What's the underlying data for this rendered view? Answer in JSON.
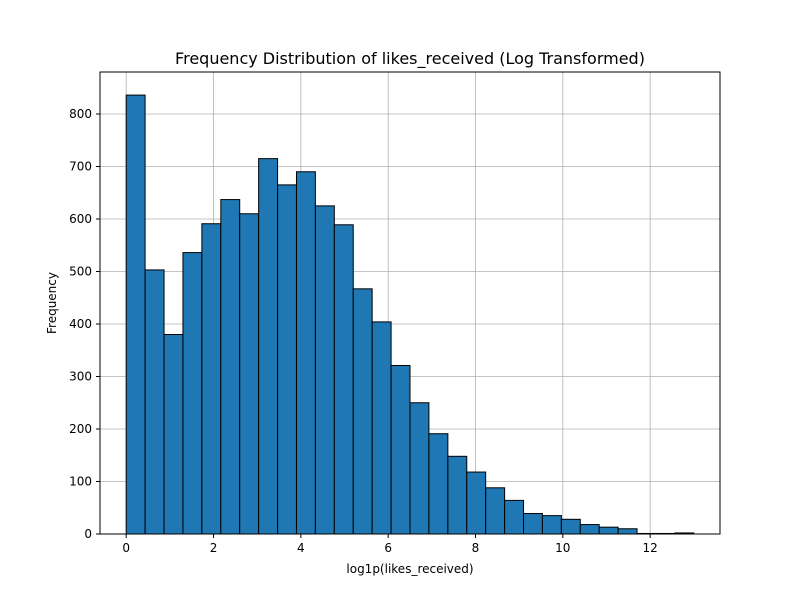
{
  "chart_data": {
    "type": "bar",
    "title": "Frequency Distribution of likes_received (Log Transformed)",
    "xlabel": "log1p(likes_received)",
    "ylabel": "Frequency",
    "xlim": [
      -0.6,
      13.6
    ],
    "ylim": [
      0,
      880
    ],
    "xticks": [
      0,
      2,
      4,
      6,
      8,
      10,
      12
    ],
    "yticks": [
      0,
      100,
      200,
      300,
      400,
      500,
      600,
      700,
      800
    ],
    "grid": true,
    "bar_color": "#1f77b4",
    "edge_color": "#000000",
    "bin_edges": [
      0,
      0.433,
      0.867,
      1.3,
      1.733,
      2.167,
      2.6,
      3.033,
      3.467,
      3.9,
      4.333,
      4.767,
      5.2,
      5.633,
      6.067,
      6.5,
      6.933,
      7.367,
      7.8,
      8.233,
      8.667,
      9.1,
      9.533,
      9.967,
      10.4,
      10.833,
      11.267,
      11.7,
      12.133,
      12.567,
      13.0
    ],
    "values": [
      836,
      503,
      380,
      536,
      591,
      637,
      610,
      715,
      665,
      690,
      625,
      589,
      467,
      404,
      321,
      250,
      191,
      148,
      118,
      88,
      64,
      39,
      35,
      28,
      18,
      13,
      10,
      1,
      1,
      2
    ]
  }
}
